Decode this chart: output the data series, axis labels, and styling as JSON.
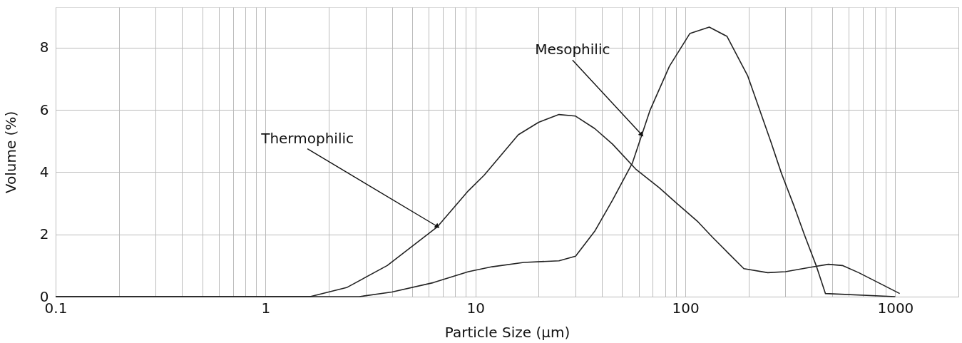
{
  "chart_data": {
    "type": "line",
    "xlabel": "Particle Size (µm)",
    "ylabel": "Volume (%)",
    "log": "x",
    "xlim": [
      0.1,
      2000
    ],
    "ylim": [
      0,
      9.3
    ],
    "xticks": [
      0.1,
      {
        "value": 0.2,
        "label": null
      },
      {
        "value": 0.3,
        "label": null
      },
      {
        "value": 0.4,
        "label": null
      },
      {
        "value": 0.5,
        "label": null
      },
      {
        "value": 0.6,
        "label": null
      },
      {
        "value": 0.7,
        "label": null
      },
      {
        "value": 0.8,
        "label": null
      },
      {
        "value": 0.9,
        "label": null
      },
      1,
      {
        "value": 2,
        "label": null
      },
      {
        "value": 3,
        "label": null
      },
      {
        "value": 4,
        "label": null
      },
      {
        "value": 5,
        "label": null
      },
      {
        "value": 6,
        "label": null
      },
      {
        "value": 7,
        "label": null
      },
      {
        "value": 8,
        "label": null
      },
      {
        "value": 9,
        "label": null
      },
      10,
      {
        "value": 20,
        "label": null
      },
      {
        "value": 30,
        "label": null
      },
      {
        "value": 40,
        "label": null
      },
      {
        "value": 50,
        "label": null
      },
      {
        "value": 60,
        "label": null
      },
      {
        "value": 70,
        "label": null
      },
      {
        "value": 80,
        "label": null
      },
      {
        "value": 90,
        "label": null
      },
      100,
      {
        "value": 200,
        "label": null
      },
      {
        "value": 300,
        "label": null
      },
      {
        "value": 400,
        "label": null
      },
      {
        "value": 500,
        "label": null
      },
      {
        "value": 600,
        "label": null
      },
      {
        "value": 700,
        "label": null
      },
      {
        "value": 800,
        "label": null
      },
      {
        "value": 900,
        "label": null
      },
      1000,
      {
        "value": 2000,
        "label": null
      }
    ],
    "yticks": [
      0,
      2,
      4,
      6,
      8
    ],
    "grid": true,
    "marker": "none",
    "line_style": "solid",
    "series": [
      {
        "color": "#222222",
        "x": [
          0.1,
          1.63,
          2.45,
          3.8,
          6.6,
          9.25,
          11,
          16,
          20,
          25,
          30,
          37,
          45,
          58,
          75,
          91,
          115,
          135,
          160,
          190,
          247,
          300,
          400,
          480,
          560,
          670,
          870,
          1050
        ],
        "values": [
          0,
          0,
          0.3,
          1.0,
          2.25,
          3.4,
          3.9,
          5.2,
          5.6,
          5.85,
          5.8,
          5.4,
          4.9,
          4.1,
          3.5,
          3.0,
          2.4,
          1.9,
          1.4,
          0.9,
          0.77,
          0.8,
          0.95,
          1.04,
          1.0,
          0.77,
          0.38,
          0.1
        ]
      },
      {
        "color": "#222222",
        "x": [
          0.1,
          2.8,
          4,
          6.3,
          9.25,
          12,
          17,
          25,
          30,
          37,
          45,
          56,
          68,
          84,
          105,
          130,
          158,
          198,
          256,
          287,
          330,
          370,
          420,
          465,
          1000
        ],
        "values": [
          0,
          0,
          0.15,
          0.45,
          0.8,
          0.96,
          1.1,
          1.15,
          1.3,
          2.1,
          3.1,
          4.3,
          6.0,
          7.4,
          8.45,
          8.66,
          8.36,
          7.1,
          4.96,
          3.96,
          2.9,
          1.97,
          1.0,
          0.1,
          0
        ]
      }
    ],
    "annotations": [
      {
        "text": "Thermophilic",
        "x": 6.6,
        "y": 2.25
      },
      {
        "text": "Mesophilic",
        "x": 62,
        "y": 5.2
      }
    ]
  }
}
